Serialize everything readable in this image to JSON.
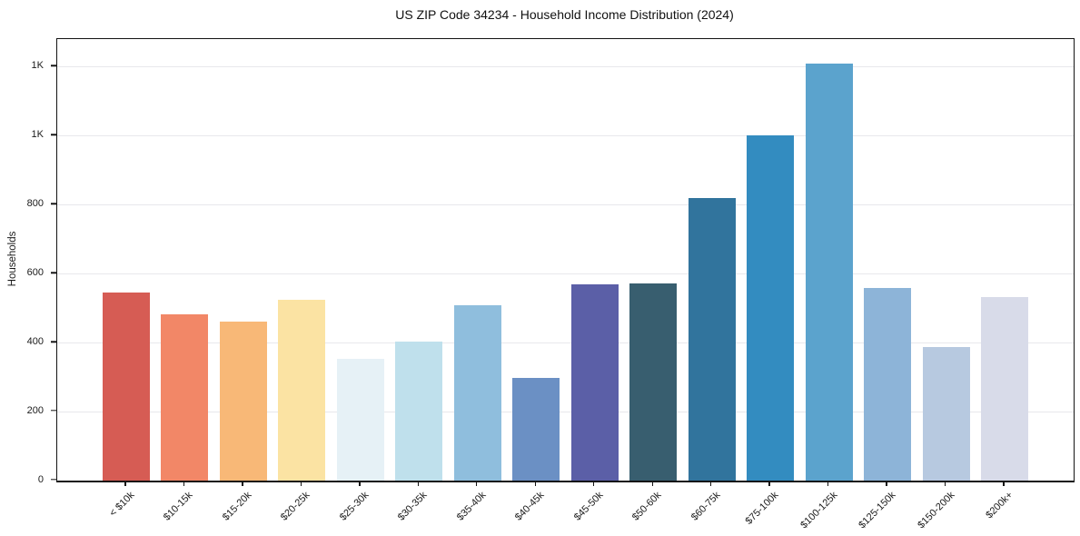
{
  "chart_data": {
    "type": "bar",
    "title": "US ZIP Code 34234 - Household Income Distribution (2024)",
    "xlabel": "",
    "ylabel": "Households",
    "categories": [
      "< $10k",
      "$10-15k",
      "$15-20k",
      "$20-25k",
      "$25-30k",
      "$30-35k",
      "$35-40k",
      "$40-45k",
      "$45-50k",
      "$50-60k",
      "$60-75k",
      "$75-100k",
      "$100-125k",
      "$125-150k",
      "$150-200k",
      "$200k+"
    ],
    "values": [
      545,
      481,
      461,
      525,
      352,
      404,
      508,
      297,
      568,
      572,
      818,
      1001,
      1209,
      558,
      387,
      532
    ],
    "bar_colors": [
      "#d65c54",
      "#f28767",
      "#f8b877",
      "#fbe3a3",
      "#e6f1f6",
      "#bfe0ec",
      "#8fbedd",
      "#6b90c4",
      "#5b5fa7",
      "#385e6f",
      "#31749d",
      "#338cc0",
      "#5ba3cd",
      "#8db4d8",
      "#b7c9e0",
      "#d8dbe9"
    ],
    "ylim": [
      0,
      1280
    ],
    "yticks": [
      {
        "value": 0,
        "label": "0"
      },
      {
        "value": 200,
        "label": "200"
      },
      {
        "value": 400,
        "label": "400"
      },
      {
        "value": 600,
        "label": "600"
      },
      {
        "value": 800,
        "label": "800"
      },
      {
        "value": 1000,
        "label": "1K"
      },
      {
        "value": 1200,
        "label": "1K"
      }
    ],
    "grid": "horizontal",
    "gridline_color": "#e8e8ec",
    "legend": "none",
    "background_color": "#ffffff"
  }
}
